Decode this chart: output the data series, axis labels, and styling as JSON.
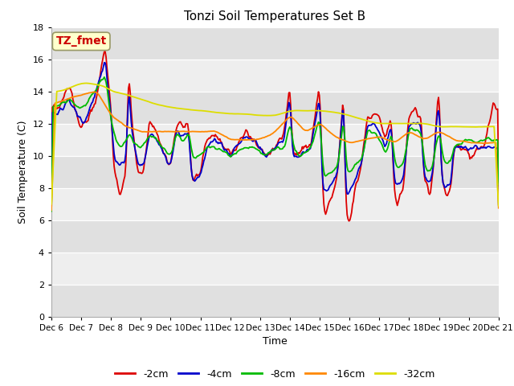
{
  "title": "Tonzi Soil Temperatures Set B",
  "xlabel": "Time",
  "ylabel": "Soil Temperature (C)",
  "ylim": [
    0,
    18
  ],
  "yticks": [
    0,
    2,
    4,
    6,
    8,
    10,
    12,
    14,
    16,
    18
  ],
  "annotation_label": "TZ_fmet",
  "annotation_color": "#cc0000",
  "annotation_bg": "#ffffcc",
  "annotation_edge": "#999966",
  "series_colors": [
    "#dd0000",
    "#0000cc",
    "#00bb00",
    "#ff8800",
    "#dddd00"
  ],
  "series_labels": [
    "-2cm",
    "-4cm",
    "-8cm",
    "-16cm",
    "-32cm"
  ],
  "xtick_labels": [
    "Dec 6",
    "Dec 7",
    "Dec 8",
    "Dec 9",
    "Dec 10",
    "Dec 11",
    "Dec 12",
    "Dec 13",
    "Dec 14",
    "Dec 15",
    "Dec 16",
    "Dec 17",
    "Dec 18",
    "Dec 19",
    "Dec 20",
    "Dec 21"
  ],
  "fig_bg": "#ffffff",
  "plot_bg_light": "#e8e8e8",
  "plot_bg_dark": "#d8d8d8",
  "grid_color": "#ffffff",
  "band_light": "#eeeeee",
  "band_dark": "#e0e0e0",
  "n_points": 500
}
